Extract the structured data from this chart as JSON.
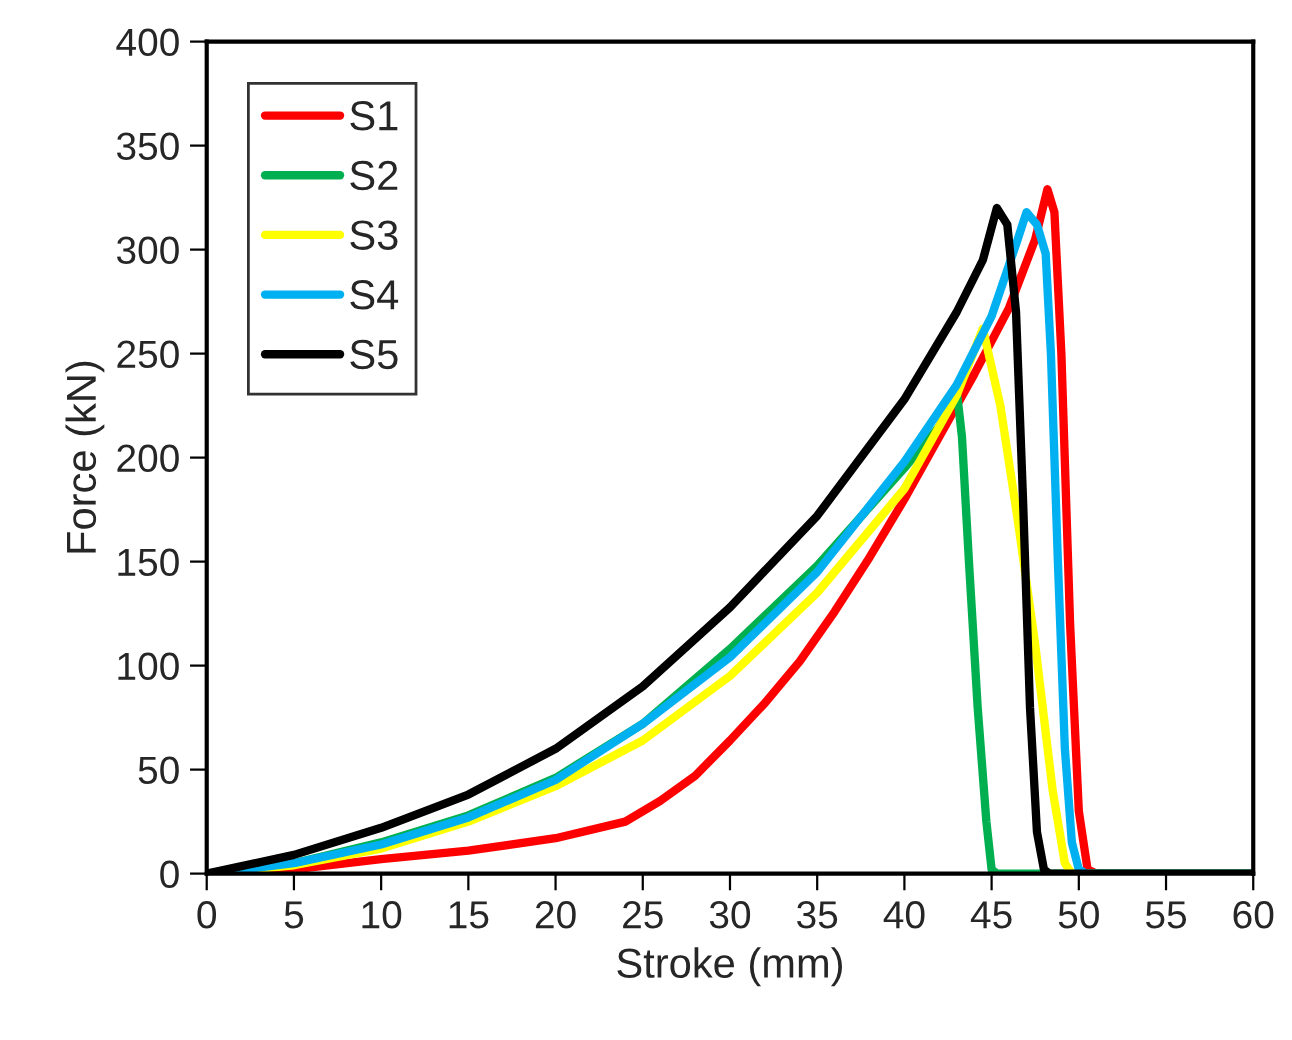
{
  "chart_data": {
    "type": "line",
    "xlabel": "Stroke (mm)",
    "ylabel": "Force (kN)",
    "xlim": [
      0,
      60
    ],
    "ylim": [
      0,
      400
    ],
    "xticks": [
      0,
      5,
      10,
      15,
      20,
      25,
      30,
      35,
      40,
      45,
      50,
      55,
      60
    ],
    "yticks": [
      0,
      50,
      100,
      150,
      200,
      250,
      300,
      350,
      400
    ],
    "grid": false,
    "legend": "top left",
    "marker": "none",
    "line_style": "solid",
    "series": [
      {
        "name": "S1",
        "color": "#ff0000",
        "x": [
          0,
          5,
          10,
          15,
          20,
          24,
          26,
          28,
          30,
          32,
          34,
          36,
          38,
          40,
          42,
          44,
          46,
          47.5,
          48.2,
          48.6,
          49,
          49.5,
          50,
          50.5,
          51,
          60
        ],
        "values": [
          0,
          2,
          7,
          11,
          17,
          25,
          35,
          47,
          64,
          82,
          102,
          126,
          152,
          180,
          210,
          240,
          272,
          305,
          329,
          318,
          250,
          120,
          30,
          2,
          0,
          0
        ]
      },
      {
        "name": "S2",
        "color": "#00b050",
        "x": [
          0,
          5,
          10,
          15,
          20,
          25,
          30,
          35,
          40,
          42,
          43,
          43.3,
          43.7,
          44.2,
          44.7,
          45,
          45.3,
          60
        ],
        "values": [
          0,
          5,
          15,
          28,
          46,
          72,
          108,
          148,
          195,
          215,
          232,
          210,
          150,
          80,
          25,
          2,
          0,
          0
        ]
      },
      {
        "name": "S3",
        "color": "#ffff00",
        "x": [
          0,
          5,
          10,
          15,
          20,
          25,
          30,
          35,
          40,
          43,
          44.5,
          45.5,
          46.5,
          47.5,
          48.5,
          49.2,
          49.6,
          60
        ],
        "values": [
          0,
          4,
          12,
          25,
          42,
          64,
          95,
          135,
          185,
          230,
          262,
          225,
          170,
          110,
          40,
          5,
          0,
          0
        ]
      },
      {
        "name": "S4",
        "color": "#00b0f0",
        "x": [
          0,
          5,
          10,
          15,
          20,
          25,
          30,
          35,
          40,
          43,
          45,
          46.5,
          47,
          47.6,
          48.1,
          48.4,
          48.8,
          49.2,
          49.6,
          50,
          50.4,
          60
        ],
        "values": [
          0,
          5,
          14,
          27,
          45,
          72,
          104,
          145,
          198,
          235,
          268,
          305,
          318,
          312,
          298,
          250,
          150,
          60,
          15,
          2,
          0,
          0
        ]
      },
      {
        "name": "S5",
        "color": "#000000",
        "x": [
          0,
          5,
          10,
          15,
          20,
          25,
          30,
          35,
          40,
          43,
          44.5,
          45.3,
          45.9,
          46.4,
          46.8,
          47.2,
          47.6,
          48,
          48.3,
          60
        ],
        "values": [
          0,
          9,
          22,
          38,
          60,
          90,
          128,
          172,
          228,
          270,
          295,
          320,
          312,
          270,
          180,
          80,
          20,
          2,
          0,
          0
        ]
      }
    ]
  }
}
